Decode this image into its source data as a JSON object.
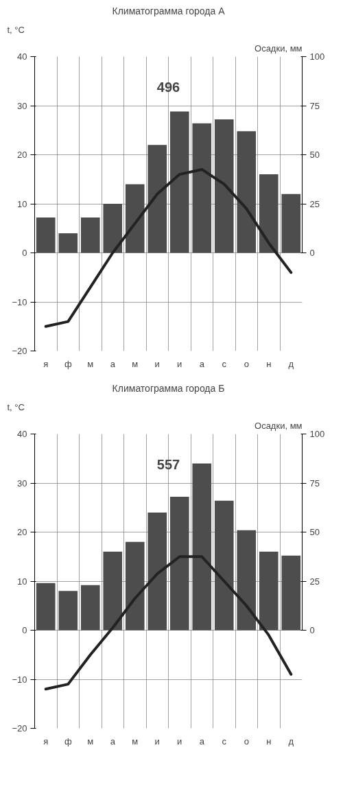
{
  "chart_data": [
    {
      "type": "bar",
      "title": "Климатограмма города А",
      "ylabel": "t, °C",
      "y2label": "Осадки, мм",
      "annotations": [
        "496"
      ],
      "categories": [
        "я",
        "ф",
        "м",
        "а",
        "м",
        "и",
        "и",
        "а",
        "с",
        "о",
        "н",
        "д"
      ],
      "series": [
        {
          "axis": "y2",
          "color": "#4d4d4d",
          "values": [
            18,
            10,
            18,
            25,
            35,
            55,
            72,
            66,
            68,
            62,
            40,
            30
          ]
        },
        {
          "type": "line",
          "color": "#222222",
          "values": [
            -15,
            -14,
            -7,
            0,
            6,
            12,
            16,
            17,
            14,
            9,
            2,
            -4
          ]
        }
      ],
      "ylim": [
        -20,
        40
      ],
      "yticks": [
        -20,
        -10,
        0,
        10,
        20,
        30,
        40
      ],
      "y2lim": [
        -50,
        100
      ],
      "y2ticks": [
        0,
        25,
        50,
        75,
        100
      ],
      "grid": true,
      "line_style": "solid",
      "marker": "none"
    },
    {
      "type": "bar",
      "title": "Климатограмма города Б",
      "ylabel": "t, °C",
      "y2label": "Осадки, мм",
      "annotations": [
        "557"
      ],
      "categories": [
        "я",
        "ф",
        "м",
        "а",
        "м",
        "и",
        "и",
        "а",
        "с",
        "о",
        "н",
        "д"
      ],
      "series": [
        {
          "axis": "y2",
          "color": "#4d4d4d",
          "values": [
            24,
            20,
            23,
            40,
            45,
            60,
            68,
            85,
            66,
            51,
            40,
            38
          ]
        },
        {
          "type": "line",
          "color": "#222222",
          "values": [
            -12,
            -11,
            -5,
            0.5,
            6.5,
            11.5,
            15,
            15,
            10,
            5,
            -1,
            -9
          ]
        }
      ],
      "ylim": [
        -20,
        40
      ],
      "yticks": [
        -20,
        -10,
        0,
        10,
        20,
        30,
        40
      ],
      "y2lim": [
        -50,
        100
      ],
      "y2ticks": [
        0,
        25,
        50,
        75,
        100
      ],
      "grid": true,
      "line_style": "solid",
      "marker": "none"
    }
  ]
}
